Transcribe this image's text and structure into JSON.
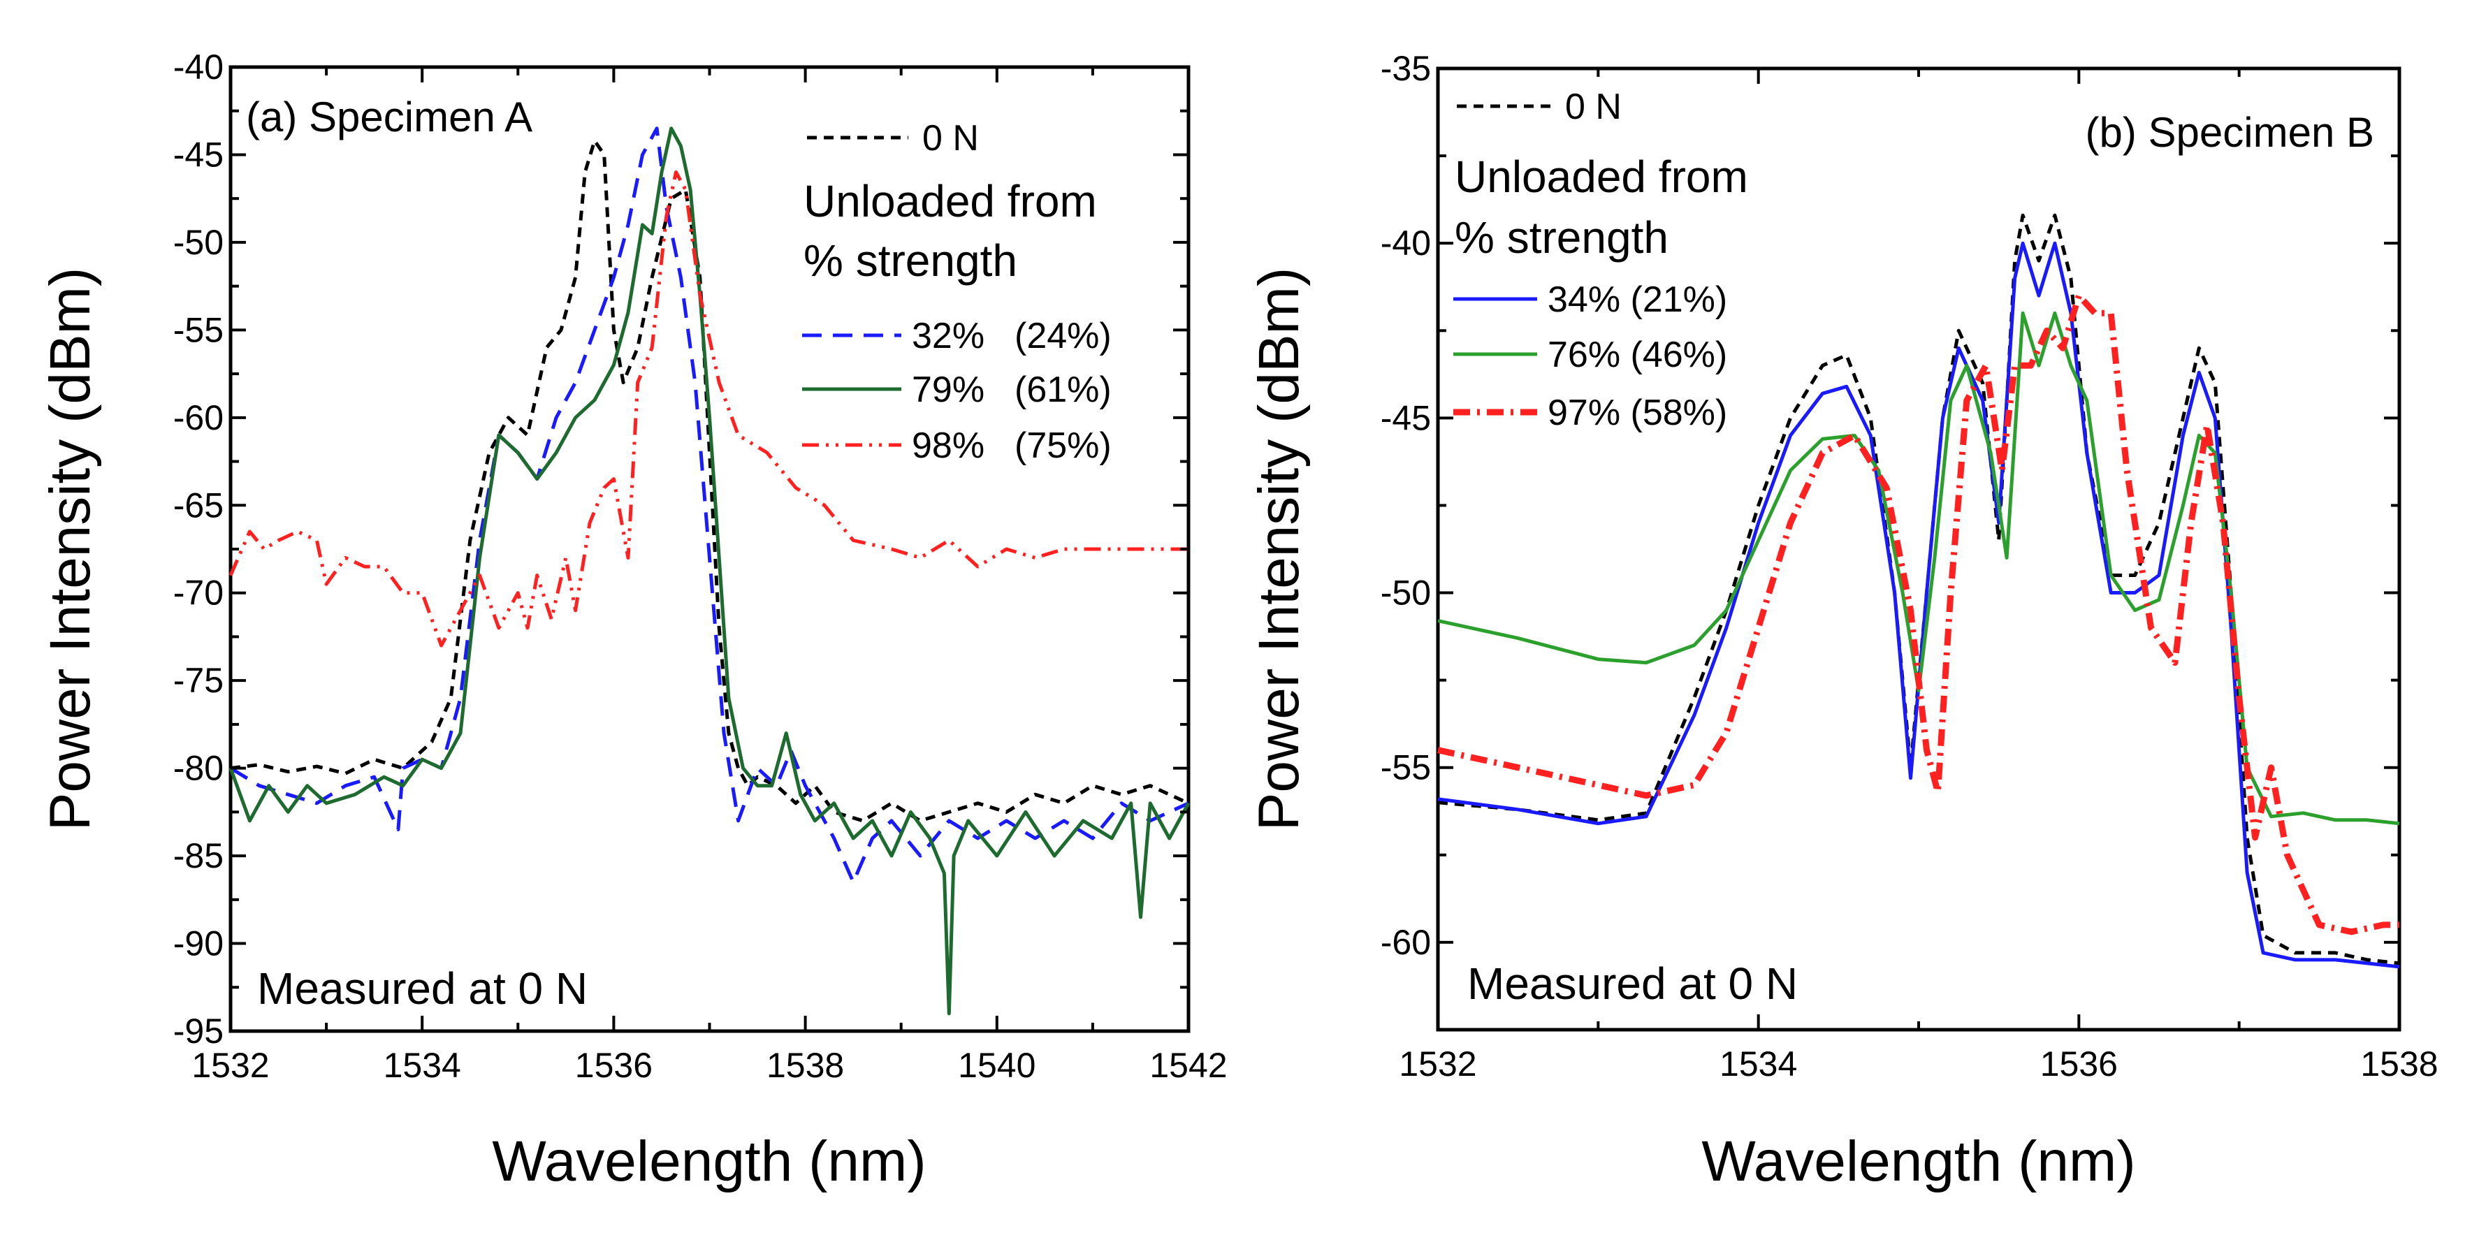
{
  "chart_data": [
    {
      "id": "a",
      "type": "line",
      "panel_label": "(a) Specimen A",
      "annotation": "Measured at 0 N",
      "xlabel": "Wavelength (nm)",
      "ylabel": "Power Intensity (dBm)",
      "xlim": [
        1532,
        1542
      ],
      "ylim": [
        -95,
        -40
      ],
      "xticks": [
        1532,
        1534,
        1536,
        1538,
        1540,
        1542
      ],
      "yticks": [
        -95,
        -90,
        -85,
        -80,
        -75,
        -70,
        -65,
        -60,
        -55,
        -50,
        -45,
        -40
      ],
      "legend_heading": [
        "Unloaded from",
        "% strength"
      ],
      "series": [
        {
          "name": "0 N",
          "label": "0 N",
          "color": "#000000",
          "dash": "14,10",
          "x": [
            1532,
            1532.3,
            1532.6,
            1532.9,
            1533.2,
            1533.5,
            1533.8,
            1534.1,
            1534.3,
            1534.5,
            1534.7,
            1534.9,
            1535.1,
            1535.3,
            1535.45,
            1535.6,
            1535.7,
            1535.8,
            1535.9,
            1536.0,
            1536.1,
            1536.25,
            1536.4,
            1536.6,
            1536.75,
            1536.9,
            1537.0,
            1537.1,
            1537.2,
            1537.3,
            1537.4,
            1537.5,
            1537.7,
            1537.9,
            1538.1,
            1538.3,
            1538.6,
            1538.9,
            1539.2,
            1539.5,
            1539.8,
            1540.1,
            1540.4,
            1540.7,
            1541.0,
            1541.3,
            1541.6,
            1542
          ],
          "y": [
            -80,
            -79.8,
            -80.2,
            -79.9,
            -80.3,
            -79.5,
            -80,
            -78.5,
            -76,
            -67,
            -62,
            -60,
            -61,
            -56,
            -55,
            -52,
            -46,
            -44.2,
            -45,
            -55,
            -58,
            -56,
            -52,
            -47.5,
            -47,
            -52,
            -62,
            -72,
            -78,
            -80,
            -81,
            -80.5,
            -81,
            -82,
            -81,
            -82.5,
            -83,
            -82,
            -83,
            -82.5,
            -82,
            -82.5,
            -81.5,
            -82,
            -81,
            -81.5,
            -81,
            -82
          ]
        },
        {
          "name": "32% (24%)",
          "label": "32%",
          "label_paren": "(24%)",
          "color": "#1a1aff",
          "dash": "28,16",
          "x": [
            1532,
            1532.3,
            1532.6,
            1532.9,
            1533.2,
            1533.5,
            1533.75,
            1533.8,
            1534.0,
            1534.2,
            1534.4,
            1534.6,
            1534.8,
            1535.0,
            1535.2,
            1535.4,
            1535.6,
            1535.8,
            1536.0,
            1536.15,
            1536.3,
            1536.45,
            1536.55,
            1536.7,
            1536.85,
            1537.0,
            1537.15,
            1537.3,
            1537.5,
            1537.7,
            1537.85,
            1538.0,
            1538.3,
            1538.5,
            1538.7,
            1538.9,
            1539.2,
            1539.5,
            1539.8,
            1540.1,
            1540.4,
            1540.7,
            1541.0,
            1541.3,
            1541.6,
            1542
          ],
          "y": [
            -80,
            -81,
            -81.5,
            -82,
            -81,
            -80.5,
            -83.5,
            -80,
            -79.5,
            -80,
            -76,
            -67,
            -61,
            -62,
            -63.5,
            -60,
            -58,
            -55,
            -52,
            -49,
            -45,
            -43.5,
            -48,
            -52,
            -58,
            -68,
            -78,
            -83,
            -80,
            -81,
            -79,
            -81,
            -84,
            -86.5,
            -84,
            -83,
            -85,
            -83,
            -84,
            -83,
            -84,
            -83,
            -84,
            -82,
            -83,
            -82
          ]
        },
        {
          "name": "79% (61%)",
          "label": "79%",
          "label_paren": "(61%)",
          "color": "#1e6b30",
          "dash": "",
          "x": [
            1532,
            1532.2,
            1532.4,
            1532.6,
            1532.8,
            1533.0,
            1533.3,
            1533.6,
            1533.8,
            1534.0,
            1534.2,
            1534.4,
            1534.6,
            1534.8,
            1535.0,
            1535.2,
            1535.4,
            1535.6,
            1535.8,
            1536.0,
            1536.15,
            1536.3,
            1536.4,
            1536.5,
            1536.6,
            1536.7,
            1536.8,
            1536.9,
            1537.0,
            1537.1,
            1537.2,
            1537.35,
            1537.5,
            1537.65,
            1537.8,
            1537.95,
            1538.1,
            1538.3,
            1538.5,
            1538.7,
            1538.9,
            1539.1,
            1539.3,
            1539.45,
            1539.5,
            1539.55,
            1539.7,
            1540.0,
            1540.3,
            1540.6,
            1540.9,
            1541.2,
            1541.4,
            1541.5,
            1541.6,
            1541.8,
            1542
          ],
          "y": [
            -80,
            -83,
            -81,
            -82.5,
            -81,
            -82,
            -81.5,
            -80.5,
            -81,
            -79.5,
            -80,
            -78,
            -68,
            -61,
            -62,
            -63.5,
            -62,
            -60,
            -59,
            -57,
            -54,
            -49,
            -49.5,
            -46,
            -43.5,
            -44.5,
            -47,
            -53,
            -60,
            -68,
            -76,
            -80,
            -81,
            -81,
            -78,
            -81.5,
            -83,
            -82,
            -84,
            -83,
            -85,
            -82.5,
            -84,
            -86,
            -94,
            -85,
            -83,
            -85,
            -82.5,
            -85,
            -83,
            -84,
            -82,
            -88.5,
            -82,
            -84,
            -82
          ]
        },
        {
          "name": "98% (75%)",
          "label": "98%",
          "label_paren": "(75%)",
          "color": "#ff2020",
          "dash": "24,10,4,10,4,10",
          "x": [
            1532,
            1532.2,
            1532.35,
            1532.5,
            1532.7,
            1532.9,
            1533.0,
            1533.2,
            1533.4,
            1533.6,
            1533.8,
            1534.0,
            1534.2,
            1534.4,
            1534.6,
            1534.8,
            1535.0,
            1535.1,
            1535.2,
            1535.35,
            1535.5,
            1535.6,
            1535.75,
            1535.9,
            1536.0,
            1536.15,
            1536.25,
            1536.4,
            1536.55,
            1536.65,
            1536.75,
            1536.9,
            1537.1,
            1537.3,
            1537.6,
            1537.9,
            1538.2,
            1538.5,
            1538.9,
            1539.2,
            1539.5,
            1539.8,
            1540.1,
            1540.4,
            1540.7,
            1541.0,
            1541.3,
            1541.6,
            1542
          ],
          "y": [
            -69,
            -66.5,
            -67.5,
            -67,
            -66.5,
            -67,
            -69.5,
            -68,
            -68.5,
            -68.5,
            -70,
            -70,
            -73,
            -71,
            -69,
            -72,
            -70,
            -72,
            -69,
            -71.5,
            -68,
            -71,
            -66,
            -64,
            -63.5,
            -68,
            -58,
            -56,
            -48.5,
            -46,
            -47,
            -53,
            -58,
            -61,
            -62,
            -64,
            -65,
            -67,
            -67.5,
            -68,
            -67,
            -68.5,
            -67.5,
            -68,
            -67.5,
            -67.5,
            -67.5,
            -67.5,
            -67.5
          ]
        }
      ]
    },
    {
      "id": "b",
      "type": "line",
      "panel_label": "(b) Specimen B",
      "annotation": "Measured at 0 N",
      "xlabel": "Wavelength (nm)",
      "ylabel": "Power Intensity (dBm)",
      "xlim": [
        1532,
        1538
      ],
      "ylim": [
        -62.5,
        -35
      ],
      "xticks": [
        1532,
        1534,
        1536,
        1538
      ],
      "yticks": [
        -60,
        -55,
        -50,
        -45,
        -40,
        -35
      ],
      "legend_heading": [
        "Unloaded from",
        "% strength"
      ],
      "series": [
        {
          "name": "0 N",
          "label": "0 N",
          "color": "#000000",
          "dash": "14,10",
          "x": [
            1532,
            1532.5,
            1533.0,
            1533.3,
            1533.6,
            1533.8,
            1534.0,
            1534.2,
            1534.4,
            1534.55,
            1534.7,
            1534.85,
            1534.95,
            1535.05,
            1535.15,
            1535.25,
            1535.4,
            1535.5,
            1535.6,
            1535.65,
            1535.75,
            1535.85,
            1535.95,
            1536.05,
            1536.2,
            1536.35,
            1536.5,
            1536.65,
            1536.75,
            1536.85,
            1536.95,
            1537.05,
            1537.15,
            1537.35,
            1537.6,
            1537.8,
            1538
          ],
          "y": [
            -56,
            -56.2,
            -56.5,
            -56.3,
            -53,
            -50.5,
            -47.5,
            -45,
            -43.5,
            -43.2,
            -45,
            -50,
            -55,
            -50,
            -45,
            -42.5,
            -44,
            -48.5,
            -40.5,
            -39.2,
            -40.5,
            -39.2,
            -41,
            -46,
            -49.5,
            -49.5,
            -48,
            -45,
            -43,
            -44,
            -50,
            -57,
            -59.8,
            -60.3,
            -60.3,
            -60.5,
            -60.6
          ]
        },
        {
          "name": "34% (21%)",
          "label": "34% (21%)",
          "color": "#1a1aff",
          "dash": "",
          "x": [
            1532,
            1532.5,
            1533.0,
            1533.3,
            1533.6,
            1533.8,
            1534.0,
            1534.2,
            1534.4,
            1534.55,
            1534.7,
            1534.85,
            1534.95,
            1535.05,
            1535.15,
            1535.25,
            1535.4,
            1535.5,
            1535.6,
            1535.65,
            1535.75,
            1535.85,
            1535.95,
            1536.05,
            1536.2,
            1536.35,
            1536.5,
            1536.65,
            1536.75,
            1536.85,
            1536.95,
            1537.05,
            1537.15,
            1537.35,
            1537.6,
            1537.8,
            1538
          ],
          "y": [
            -55.9,
            -56.2,
            -56.6,
            -56.4,
            -53.5,
            -51,
            -48,
            -45.5,
            -44.3,
            -44.1,
            -45.5,
            -50,
            -55.3,
            -50,
            -45,
            -43,
            -44.5,
            -48,
            -41,
            -40,
            -41.5,
            -40,
            -42,
            -46,
            -50,
            -50,
            -49.5,
            -45.5,
            -43.7,
            -45,
            -51,
            -58,
            -60.3,
            -60.5,
            -60.5,
            -60.6,
            -60.7
          ]
        },
        {
          "name": "76% (46%)",
          "label": "76% (46%)",
          "color": "#2ca02c",
          "dash": "",
          "x": [
            1532,
            1532.5,
            1533.0,
            1533.3,
            1533.6,
            1533.8,
            1534.0,
            1534.2,
            1534.4,
            1534.6,
            1534.75,
            1534.9,
            1535.0,
            1535.1,
            1535.2,
            1535.3,
            1535.45,
            1535.55,
            1535.65,
            1535.75,
            1535.85,
            1535.95,
            1536.05,
            1536.2,
            1536.35,
            1536.5,
            1536.65,
            1536.75,
            1536.85,
            1536.95,
            1537.05,
            1537.2,
            1537.4,
            1537.6,
            1537.8,
            1538
          ],
          "y": [
            -50.8,
            -51.3,
            -51.9,
            -52,
            -51.5,
            -50.5,
            -48.5,
            -46.5,
            -45.6,
            -45.5,
            -46.5,
            -50,
            -52.8,
            -49,
            -44.5,
            -43.5,
            -46,
            -49,
            -42,
            -43.5,
            -42,
            -43.5,
            -44.5,
            -49.5,
            -50.5,
            -50.2,
            -47.5,
            -45.5,
            -46,
            -50,
            -55,
            -56.4,
            -56.3,
            -56.5,
            -56.5,
            -56.6
          ]
        },
        {
          "name": "97% (58%)",
          "label": "97% (58%)",
          "color": "#ff2020",
          "dash": "24,10,4,10",
          "x": [
            1532,
            1532.5,
            1533.0,
            1533.3,
            1533.6,
            1533.8,
            1534.0,
            1534.2,
            1534.4,
            1534.6,
            1534.8,
            1534.95,
            1535.05,
            1535.12,
            1535.2,
            1535.3,
            1535.42,
            1535.52,
            1535.6,
            1535.7,
            1535.8,
            1535.9,
            1536.0,
            1536.1,
            1536.2,
            1536.3,
            1536.45,
            1536.6,
            1536.7,
            1536.8,
            1536.9,
            1537.0,
            1537.1,
            1537.2,
            1537.3,
            1537.5,
            1537.7,
            1537.9,
            1538
          ],
          "y": [
            -54.5,
            -55,
            -55.5,
            -55.8,
            -55.5,
            -54,
            -51,
            -48,
            -46,
            -45.5,
            -47,
            -50.5,
            -54.5,
            -55.7,
            -50,
            -44.5,
            -43.5,
            -46.5,
            -43.5,
            -43.5,
            -42.5,
            -43,
            -41.5,
            -42,
            -42,
            -46.5,
            -51,
            -52,
            -48,
            -45.2,
            -48,
            -53,
            -57,
            -55,
            -57.5,
            -59.5,
            -59.7,
            -59.5,
            -59.5
          ]
        }
      ]
    }
  ]
}
